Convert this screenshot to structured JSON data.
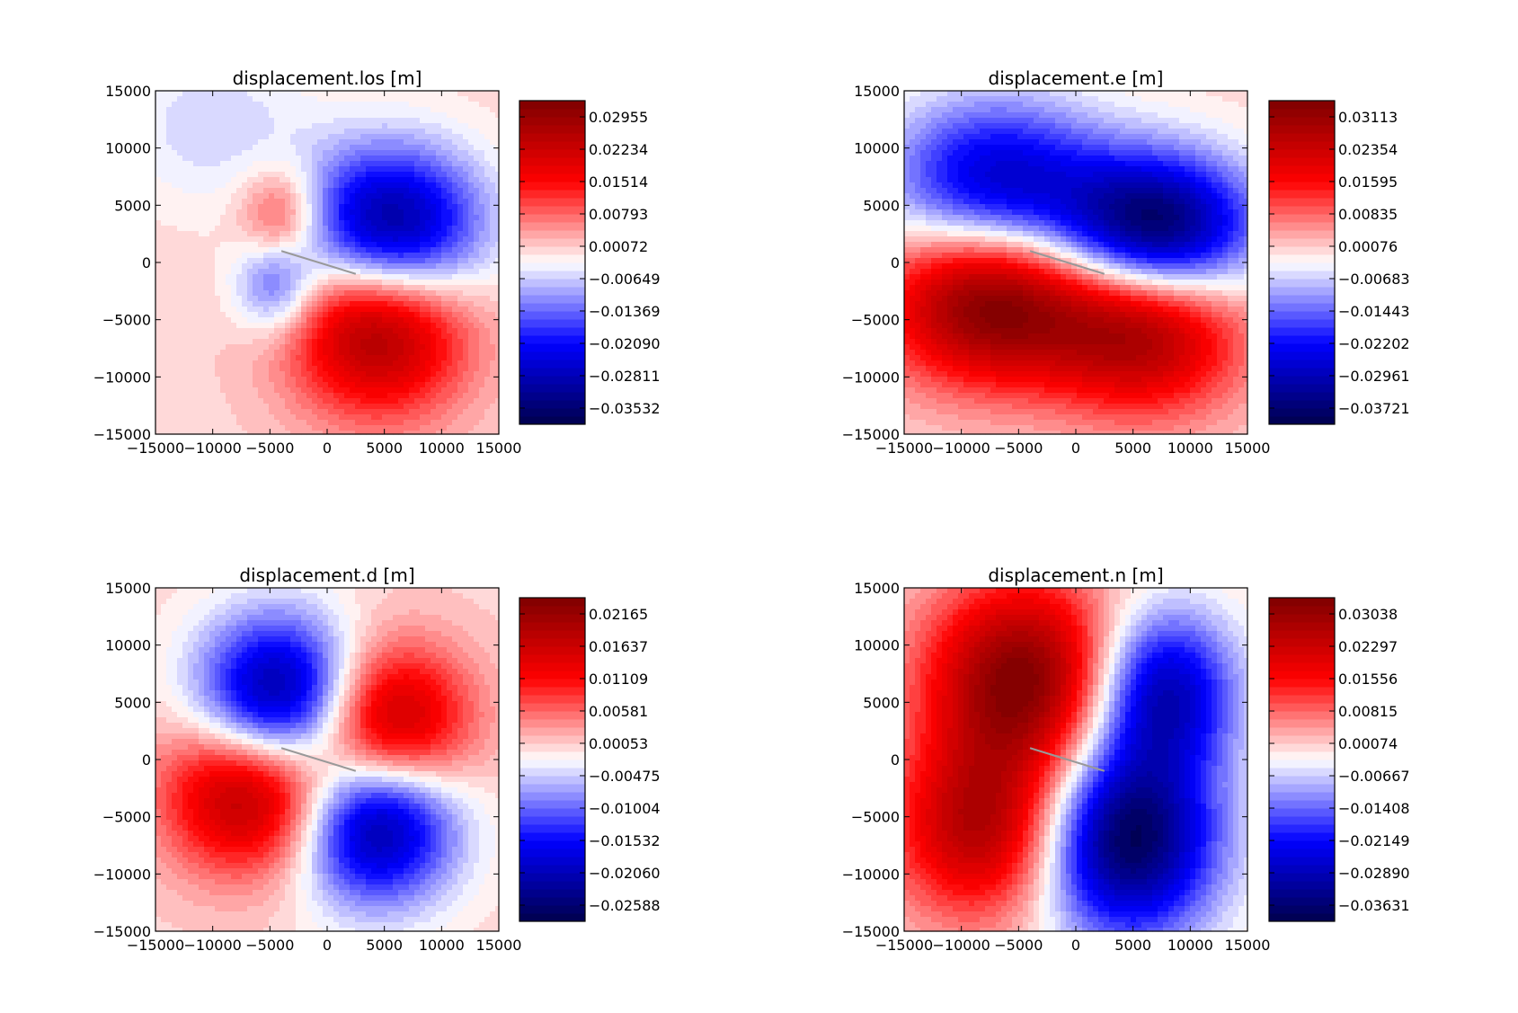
{
  "figure": {
    "background": "#ffffff",
    "colormap": "seismic",
    "colormap_stops": [
      "#00004c",
      "#0000ff",
      "#ffffff",
      "#ff0000",
      "#7f0000"
    ]
  },
  "chart_data": [
    {
      "type": "heatmap",
      "title": "displacement.los [m]",
      "xlim": [
        -15000,
        15000
      ],
      "ylim": [
        -15000,
        15000
      ],
      "xticks": [
        "−15000",
        "−10000",
        "−5000",
        "0",
        "5000",
        "10000",
        "15000"
      ],
      "yticks": [
        "15000",
        "10000",
        "5000",
        "0",
        "−5000",
        "−10000",
        "−15000"
      ],
      "colorbar": {
        "vmin": -0.03893,
        "vmax": 0.03316,
        "ticks": [
          "0.02955",
          "0.02234",
          "0.01514",
          "0.00793",
          "0.00072",
          "−0.00649",
          "−0.01369",
          "−0.02090",
          "−0.02811",
          "−0.03532"
        ]
      },
      "fault_trace": [
        [
          -4000,
          1000
        ],
        [
          2500,
          -1000
        ]
      ],
      "blobs": [
        {
          "x": 5500,
          "y": 2500,
          "value": -0.0389,
          "sx": 5500,
          "sy": 5000
        },
        {
          "x": 4500,
          "y": -5000,
          "value": 0.0331,
          "sx": 5500,
          "sy": 5500
        },
        {
          "x": -4000,
          "y": 4000,
          "value": 0.014,
          "sx": 2500,
          "sy": 3000
        },
        {
          "x": -4500,
          "y": -2000,
          "value": -0.015,
          "sx": 2500,
          "sy": 3000
        },
        {
          "x": -10000,
          "y": 12000,
          "value": -0.006,
          "sx": 6000,
          "sy": 5000
        }
      ]
    },
    {
      "type": "heatmap",
      "title": "displacement.e [m]",
      "xlim": [
        -15000,
        15000
      ],
      "ylim": [
        -15000,
        15000
      ],
      "xticks": [
        "−15000",
        "−10000",
        "−5000",
        "0",
        "5000",
        "10000",
        "15000"
      ],
      "yticks": [
        "15000",
        "10000",
        "5000",
        "0",
        "−5000",
        "−10000",
        "−15000"
      ],
      "colorbar": {
        "vmin": -0.04101,
        "vmax": 0.03493,
        "ticks": [
          "0.03113",
          "0.02354",
          "0.01595",
          "0.00835",
          "0.00076",
          "−0.00683",
          "−0.01443",
          "−0.02202",
          "−0.02961",
          "−0.03721"
        ]
      },
      "fault_trace": [
        [
          -4000,
          1000
        ],
        [
          2500,
          -1000
        ]
      ],
      "blobs": [
        {
          "x": 7000,
          "y": 3000,
          "value": -0.041,
          "sx": 6000,
          "sy": 4500
        },
        {
          "x": -7000,
          "y": 7000,
          "value": -0.028,
          "sx": 6500,
          "sy": 5000
        },
        {
          "x": -7500,
          "y": -3500,
          "value": 0.0349,
          "sx": 6500,
          "sy": 5000
        },
        {
          "x": 6000,
          "y": -6000,
          "value": 0.029,
          "sx": 6000,
          "sy": 5000
        }
      ]
    },
    {
      "type": "heatmap",
      "title": "displacement.d [m]",
      "xlim": [
        -15000,
        15000
      ],
      "ylim": [
        -15000,
        15000
      ],
      "xticks": [
        "−15000",
        "−10000",
        "−5000",
        "0",
        "5000",
        "10000",
        "15000"
      ],
      "yticks": [
        "15000",
        "10000",
        "5000",
        "0",
        "−5000",
        "−10000",
        "−15000"
      ],
      "colorbar": {
        "vmin": -0.02852,
        "vmax": 0.02429,
        "ticks": [
          "0.02165",
          "0.01637",
          "0.01109",
          "0.00581",
          "0.00053",
          "−0.00475",
          "−0.01004",
          "−0.01532",
          "−0.02060",
          "−0.02588"
        ]
      },
      "fault_trace": [
        [
          -4000,
          1000
        ],
        [
          2500,
          -1000
        ]
      ],
      "blobs": [
        {
          "x": -4000,
          "y": 5000,
          "value": -0.0285,
          "sx": 5000,
          "sy": 5000
        },
        {
          "x": 5000,
          "y": 2500,
          "value": 0.0243,
          "sx": 5000,
          "sy": 5000
        },
        {
          "x": -6000,
          "y": -2500,
          "value": 0.0243,
          "sx": 5500,
          "sy": 5000
        },
        {
          "x": 4000,
          "y": -5000,
          "value": -0.0285,
          "sx": 5000,
          "sy": 5000
        }
      ]
    },
    {
      "type": "heatmap",
      "title": "displacement.n [m]",
      "xlim": [
        -15000,
        15000
      ],
      "ylim": [
        -15000,
        15000
      ],
      "xticks": [
        "−15000",
        "−10000",
        "−5000",
        "0",
        "5000",
        "10000",
        "15000"
      ],
      "yticks": [
        "15000",
        "10000",
        "5000",
        "0",
        "−5000",
        "−10000",
        "−15000"
      ],
      "colorbar": {
        "vmin": -0.04001,
        "vmax": 0.03409,
        "ticks": [
          "0.03038",
          "0.02297",
          "0.01556",
          "0.00815",
          "0.00074",
          "−0.00667",
          "−0.01408",
          "−0.02149",
          "−0.02890",
          "−0.03631"
        ]
      },
      "fault_trace": [
        [
          -4000,
          1000
        ],
        [
          2500,
          -1000
        ]
      ],
      "blobs": [
        {
          "x": -4500,
          "y": 7000,
          "value": 0.0341,
          "sx": 6000,
          "sy": 6000
        },
        {
          "x": -8000,
          "y": -6000,
          "value": 0.027,
          "sx": 5500,
          "sy": 5500
        },
        {
          "x": 4500,
          "y": -7000,
          "value": -0.04,
          "sx": 5500,
          "sy": 6000
        },
        {
          "x": 7500,
          "y": 6000,
          "value": -0.03,
          "sx": 4500,
          "sy": 5000
        }
      ]
    }
  ]
}
